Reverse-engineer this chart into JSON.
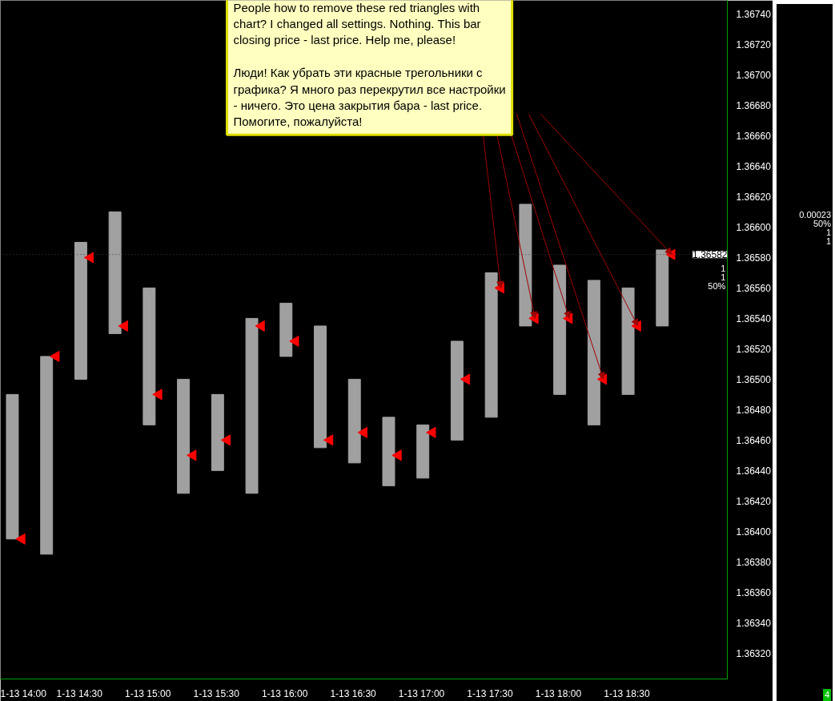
{
  "chart_data": {
    "type": "bar",
    "categories": [
      "1-13  14:00",
      null,
      "1-13  14:30",
      null,
      "1-13  15:00",
      null,
      "1-13  15:30",
      null,
      "1-13  16:00",
      null,
      "1-13  16:30",
      null,
      "1-13  17:00",
      null,
      "1-13  17:30",
      null,
      "1-13  18:00",
      null,
      "1-13  18:30",
      null
    ],
    "series": [
      {
        "color": "#a0a0a0",
        "base": [
          1.36395,
          1.36385,
          1.365,
          1.3653,
          1.3647,
          1.36425,
          1.3644,
          1.36425,
          1.36515,
          1.36455,
          1.36445,
          1.3643,
          1.36435,
          1.3646,
          1.36475,
          1.36535,
          1.3649,
          1.3647,
          1.3649,
          1.36535
        ],
        "values": [
          0.00095,
          0.0013,
          0.0009,
          0.0008,
          0.0009,
          0.00075,
          0.0005,
          0.00115,
          0.00035,
          0.0008,
          0.00055,
          0.00045,
          0.00035,
          0.00065,
          0.00095,
          0.0008,
          0.00085,
          0.00095,
          0.0007,
          0.0005
        ]
      },
      {
        "type": "scatter",
        "color": "#ff0000",
        "marker": "triangle",
        "values": [
          1.36395,
          1.36515,
          1.3658,
          1.36535,
          1.3649,
          1.3645,
          1.3646,
          1.36535,
          1.36525,
          1.3646,
          1.36465,
          1.3645,
          1.36465,
          1.365,
          1.3656,
          1.3654,
          1.3654,
          1.365,
          1.36535,
          1.36582
        ]
      }
    ],
    "ylim": [
      1.36303,
      1.36749
    ],
    "yticks": [
      {
        "value": 1.3632,
        "label": "1.36320"
      },
      {
        "value": 1.3634,
        "label": "1.36340"
      },
      {
        "value": 1.3636,
        "label": "1.36360"
      },
      {
        "value": 1.3638,
        "label": "1.36380"
      },
      {
        "value": 1.364,
        "label": "1.36400"
      },
      {
        "value": 1.3642,
        "label": "1.36420"
      },
      {
        "value": 1.3644,
        "label": "1.36440"
      },
      {
        "value": 1.3646,
        "label": "1.36460"
      },
      {
        "value": 1.3648,
        "label": "1.36480"
      },
      {
        "value": 1.365,
        "label": "1.36500"
      },
      {
        "value": 1.3652,
        "label": "1.36520"
      },
      {
        "value": 1.3654,
        "label": "1.36540"
      },
      {
        "value": 1.3656,
        "label": "1.36560"
      },
      {
        "value": 1.3658,
        "label": "1.36580"
      },
      {
        "value": 1.366,
        "label": "1.36600"
      },
      {
        "value": 1.3662,
        "label": "1.36620"
      },
      {
        "value": 1.3664,
        "label": "1.36640"
      },
      {
        "value": 1.3666,
        "label": "1.36660"
      },
      {
        "value": 1.3668,
        "label": "1.36680"
      },
      {
        "value": 1.367,
        "label": "1.36700"
      },
      {
        "value": 1.3672,
        "label": "1.36720"
      },
      {
        "value": 1.3674,
        "label": "1.36740"
      }
    ],
    "ref_lines": [
      {
        "axis": "y",
        "value": 1.36582,
        "label": "1.36582"
      }
    ],
    "annotations": [
      "People how to remove these red triangles with\nchart? I changed all settings. Nothing. This bar\nclosing price - last price. Help me, please!\n\nЛюди! Как убрать эти красные трегольники с\nграфика? Я много раз перекрутил все настройки\n- ничего. Это цена закрытия бара - last price.\nПомогите, пожалуйста!",
      "1\n1\n50%",
      "0.00023\n50%\n1\n1",
      "4"
    ],
    "grid": false
  }
}
